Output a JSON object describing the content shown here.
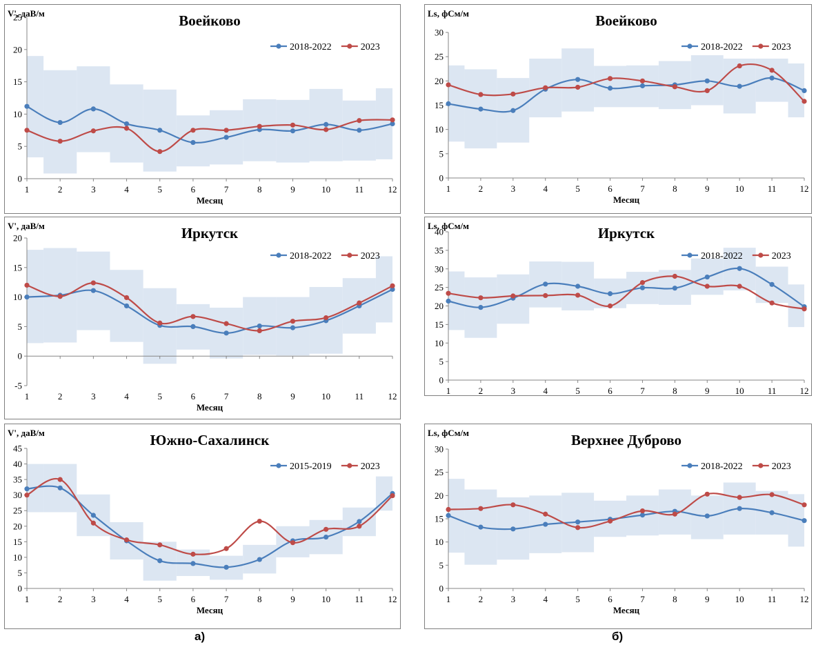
{
  "labels": {
    "left": "а)",
    "right": "б)"
  },
  "colors": {
    "series1": "#4a7ebb",
    "series2": "#be4b48",
    "band": "#dce6f2"
  },
  "chart_data": [
    {
      "type": "line",
      "title": "Воейково",
      "ylabel": "V', даВ/м",
      "xlabel": "Месяц",
      "ylim": [
        0,
        25
      ],
      "ystep": 5,
      "x": [
        1,
        2,
        3,
        4,
        5,
        6,
        7,
        8,
        9,
        10,
        11,
        12
      ],
      "band": {
        "low": [
          3.3,
          0.8,
          4.1,
          2.5,
          1.1,
          1.9,
          2.2,
          2.7,
          2.5,
          2.7,
          2.8,
          3.0
        ],
        "high": [
          19.0,
          16.8,
          17.4,
          14.6,
          13.8,
          9.8,
          10.6,
          12.3,
          12.2,
          13.9,
          12.1,
          14.0
        ]
      },
      "series": [
        {
          "name": "2018-2022",
          "values": [
            11.2,
            8.7,
            10.8,
            8.5,
            7.5,
            5.6,
            6.4,
            7.6,
            7.4,
            8.4,
            7.5,
            8.5
          ]
        },
        {
          "name": "2023",
          "values": [
            7.5,
            5.8,
            7.4,
            7.8,
            4.2,
            7.5,
            7.5,
            8.1,
            8.3,
            7.6,
            9.0,
            9.1
          ]
        }
      ],
      "legend": "top-right"
    },
    {
      "type": "line",
      "title": "Иркутск",
      "ylabel": "V', даВ/м",
      "xlabel": "Месяц",
      "ylim": [
        -5,
        20
      ],
      "ystep": 5,
      "x": [
        1,
        2,
        3,
        4,
        5,
        6,
        7,
        8,
        9,
        10,
        11,
        12
      ],
      "band": {
        "low": [
          2.2,
          2.3,
          4.4,
          2.4,
          -1.3,
          1.1,
          -0.4,
          0.2,
          0.1,
          0.4,
          3.8,
          5.7
        ],
        "high": [
          18.0,
          18.3,
          17.7,
          14.6,
          11.5,
          8.8,
          8.2,
          10.0,
          10.0,
          11.7,
          13.2,
          16.9
        ]
      },
      "series": [
        {
          "name": "2018-2022",
          "values": [
            10.0,
            10.3,
            11.1,
            8.5,
            5.2,
            5.0,
            3.9,
            5.1,
            4.8,
            6.0,
            8.5,
            11.3
          ]
        },
        {
          "name": "2023",
          "values": [
            12.0,
            10.1,
            12.4,
            9.9,
            5.6,
            6.7,
            5.5,
            4.3,
            5.9,
            6.5,
            9.0,
            11.9
          ]
        }
      ],
      "legend": "top-right"
    },
    {
      "type": "line",
      "title": "Южно-Сахалинск",
      "ylabel": "V', даВ/м",
      "xlabel": "Месяц",
      "ylim": [
        0,
        45
      ],
      "ystep": 5,
      "x": [
        1,
        2,
        3,
        4,
        5,
        6,
        7,
        8,
        9,
        10,
        11,
        12
      ],
      "band": {
        "low": [
          24.5,
          24.5,
          16.8,
          9.3,
          2.5,
          4.0,
          2.8,
          4.8,
          10.0,
          11.0,
          16.8,
          25.0
        ],
        "high": [
          40.0,
          40.0,
          30.2,
          21.3,
          15.0,
          12.5,
          10.5,
          14.0,
          20.0,
          22.0,
          26.0,
          36.0
        ]
      },
      "series": [
        {
          "name": "2015-2019",
          "values": [
            32.0,
            32.3,
            23.5,
            15.3,
            8.9,
            8.0,
            6.8,
            9.3,
            15.3,
            16.5,
            21.5,
            30.5
          ]
        },
        {
          "name": "2023",
          "values": [
            30.0,
            35.0,
            21.0,
            15.6,
            14.0,
            11.0,
            12.8,
            21.6,
            14.7,
            19.0,
            20.0,
            29.8
          ]
        }
      ],
      "legend": "top-right"
    },
    {
      "type": "line",
      "title": "Воейково",
      "ylabel": "Ls, фСм/м",
      "xlabel": "Месяц",
      "ylim": [
        0,
        30
      ],
      "ystep": 5,
      "x": [
        1,
        2,
        3,
        4,
        5,
        6,
        7,
        8,
        9,
        10,
        11,
        12
      ],
      "band": {
        "low": [
          7.5,
          6.1,
          7.3,
          12.5,
          13.7,
          14.6,
          14.6,
          14.2,
          15.0,
          13.3,
          15.7,
          12.5
        ],
        "high": [
          23.2,
          22.4,
          20.6,
          24.6,
          26.7,
          23.1,
          23.2,
          24.1,
          25.3,
          24.6,
          24.6,
          23.6
        ]
      },
      "series": [
        {
          "name": "2018-2022",
          "values": [
            15.3,
            14.2,
            13.9,
            18.3,
            20.3,
            18.5,
            19.0,
            19.2,
            20.0,
            18.9,
            20.6,
            18.0
          ]
        },
        {
          "name": "2023",
          "values": [
            19.2,
            17.2,
            17.3,
            18.6,
            18.7,
            20.5,
            20.0,
            18.8,
            18.0,
            23.1,
            22.2,
            15.8
          ]
        }
      ],
      "legend": "top-right"
    },
    {
      "type": "line",
      "title": "Иркутск",
      "ylabel": "Ls, фСм/м",
      "xlabel": "Месяц",
      "ylim": [
        0,
        40
      ],
      "ystep": 5,
      "x": [
        1,
        2,
        3,
        4,
        5,
        6,
        7,
        8,
        9,
        10,
        11,
        12
      ],
      "band": {
        "low": [
          13.5,
          11.4,
          15.2,
          19.6,
          18.8,
          19.4,
          20.5,
          20.3,
          23.0,
          24.2,
          20.8,
          14.3
        ],
        "high": [
          29.3,
          27.7,
          28.5,
          32.0,
          31.9,
          27.4,
          29.2,
          29.7,
          32.8,
          35.7,
          30.6,
          25.8
        ]
      },
      "series": [
        {
          "name": "2018-2022",
          "values": [
            21.3,
            19.6,
            22.1,
            25.9,
            25.3,
            23.3,
            24.9,
            24.8,
            27.8,
            30.1,
            25.8,
            19.8
          ]
        },
        {
          "name": "2023",
          "values": [
            23.4,
            22.2,
            22.7,
            22.8,
            22.9,
            20.0,
            26.3,
            28.0,
            25.3,
            25.3,
            20.8,
            19.2
          ]
        }
      ],
      "legend": "top-right"
    },
    {
      "type": "line",
      "title": "Верхнее Дуброво",
      "ylabel": "Ls, фСм/м",
      "xlabel": "Месяц",
      "ylim": [
        0,
        30
      ],
      "ystep": 5,
      "x": [
        1,
        2,
        3,
        4,
        5,
        6,
        7,
        8,
        9,
        10,
        11,
        12
      ],
      "band": {
        "low": [
          7.7,
          5.1,
          6.2,
          7.6,
          7.8,
          11.1,
          11.4,
          11.6,
          10.6,
          11.6,
          11.6,
          9.0
        ],
        "high": [
          23.6,
          21.3,
          19.6,
          20.0,
          20.6,
          18.9,
          20.0,
          21.3,
          20.0,
          22.8,
          21.0,
          20.3
        ]
      },
      "series": [
        {
          "name": "2018-2022",
          "values": [
            15.7,
            13.2,
            12.8,
            13.8,
            14.3,
            14.9,
            15.8,
            16.6,
            15.6,
            17.2,
            16.3,
            14.6
          ]
        },
        {
          "name": "2023",
          "values": [
            17.0,
            17.2,
            18.0,
            16.0,
            13.1,
            14.5,
            16.7,
            16.0,
            20.3,
            19.6,
            20.2,
            18.0
          ]
        }
      ],
      "legend": "top-right"
    }
  ]
}
